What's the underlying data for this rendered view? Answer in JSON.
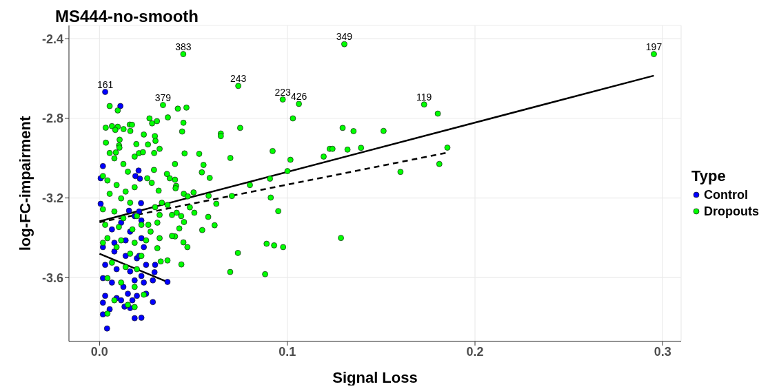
{
  "chart_data": {
    "type": "scatter",
    "title": "MS444-no-smooth",
    "xlabel": "Signal Loss",
    "ylabel": "log-FC-impairment",
    "legend_title": "Type",
    "legend": "right",
    "grid": true,
    "marker": "circle",
    "xlim": [
      -0.0163,
      0.3098
    ],
    "ylim": [
      -3.921,
      -2.333
    ],
    "xticks": [
      {
        "value": 0,
        "label": "0.0"
      },
      0.1,
      0.2,
      0.3
    ],
    "yticks": [
      -3.6,
      -3.2,
      -2.8,
      -2.4
    ],
    "series": [
      {
        "name": "Control",
        "color": "#0000ff",
        "x": [
          0.003,
          0.0111,
          0.0018,
          0.0006,
          0.0208,
          0.0191,
          0.0215,
          0.0006,
          0.0221,
          0.0157,
          0.0018,
          0.0079,
          0.0139,
          0.0199,
          0.0248,
          0.003,
          0.0091,
          0.0163,
          0.0223,
          0.0018,
          0.0066,
          0.0127,
          0.0187,
          0.0236,
          0.003,
          0.0091,
          0.0151,
          0.0199,
          0.0018,
          0.0115,
          0.0175,
          0.0248,
          0.0284,
          0.0054,
          0.0133,
          0.0163,
          0.0018,
          0.0187,
          0.0223,
          0.004,
          0.0296,
          0.0293,
          0.0284,
          0.0362,
          0.0211,
          0.0223,
          0.0187,
          0.0163,
          0.0115,
          0.0066,
          0.0223,
          0.0139,
          0.0079,
          0.0236,
          0.0211
        ],
        "values": [
          -2.667,
          -2.738,
          -3.04,
          -3.101,
          -3.062,
          -3.09,
          -3.103,
          -3.229,
          -3.226,
          -3.264,
          -3.447,
          -3.469,
          -3.491,
          -3.503,
          -3.536,
          -3.536,
          -3.558,
          -3.569,
          -3.592,
          -3.603,
          -3.625,
          -3.647,
          -3.614,
          -3.625,
          -3.692,
          -3.703,
          -3.681,
          -3.692,
          -3.726,
          -3.714,
          -3.714,
          -3.681,
          -3.723,
          -3.759,
          -3.746,
          -3.753,
          -3.785,
          -3.804,
          -3.802,
          -3.856,
          -3.536,
          -3.573,
          -3.614,
          -3.622,
          -3.268,
          -3.313,
          -3.291,
          -3.369,
          -3.324,
          -3.358,
          -3.402,
          -3.413,
          -3.425,
          -3.447,
          -3.491
        ]
      },
      {
        "name": "Dropouts",
        "color": "#00ff00",
        "x": [
          0.0446,
          0.1304,
          0.2953,
          0.0739,
          0.0976,
          0.1062,
          0.1729,
          0.0338,
          0.1802,
          0.103,
          0.1295,
          0.1353,
          0.1513,
          0.1853,
          0.1393,
          0.1321,
          0.1226,
          0.1241,
          0.1194,
          0.1017,
          0.181,
          0.1603,
          0.1001,
          0.0922,
          0.0908,
          0.0912,
          0.0952,
          0.1286,
          0.089,
          0.093,
          0.0978,
          0.0882,
          0.0696,
          0.0737,
          0.0697,
          0.0749,
          0.0646,
          0.0646,
          0.0531,
          0.0554,
          0.0545,
          0.0587,
          0.0801,
          0.0705,
          0.0581,
          0.0622,
          0.0579,
          0.0613,
          0.0547,
          0.0463,
          0.0417,
          0.0447,
          0.044,
          0.0453,
          0.0402,
          0.0402,
          0.0408,
          0.0449,
          0.047,
          0.0501,
          0.0481,
          0.0505,
          0.045,
          0.0425,
          0.0435,
          0.0402,
          0.0447,
          0.0468,
          0.0436,
          0.0054,
          0.0097,
          0.0364,
          0.0266,
          0.0306,
          0.028,
          0.0033,
          0.0066,
          0.0097,
          0.0084,
          0.0128,
          0.0161,
          0.0173,
          0.0164,
          0.0236,
          0.0295,
          0.0298,
          0.0258,
          0.032,
          0.0034,
          0.0107,
          0.0104,
          0.0106,
          0.0196,
          0.0054,
          0.0087,
          0.021,
          0.0231,
          0.0291,
          0.0187,
          0.0079,
          0.0127,
          0.0151,
          0.0042,
          0.0091,
          0.0139,
          0.0187,
          0.0054,
          0.0115,
          0.0163,
          0.0018,
          0.0079,
          0.0127,
          0.0199,
          0.003,
          0.0103,
          0.0175,
          0.0223,
          0.026,
          0.0042,
          0.0115,
          0.0187,
          0.0248,
          0.0018,
          0.0091,
          0.0163,
          0.0223,
          0.0066,
          0.0139,
          0.0199,
          0.0042,
          0.0115,
          0.0187,
          0.0236,
          0.0079,
          0.0151,
          0.0042,
          0.0187,
          0.0296,
          0.0332,
          0.032,
          0.0308,
          0.0272,
          0.032,
          0.0308,
          0.0326,
          0.0362,
          0.0386,
          0.0386,
          0.0411,
          0.0362,
          0.0405,
          0.0374,
          0.0315,
          0.0359,
          0.029,
          0.0254,
          0.0278,
          0.0018
        ],
        "values": [
          -2.477,
          -2.427,
          -2.477,
          -2.637,
          -2.705,
          -2.727,
          -2.73,
          -2.733,
          -2.776,
          -2.8,
          -2.848,
          -2.864,
          -2.863,
          -2.947,
          -2.948,
          -2.957,
          -2.953,
          -2.953,
          -2.992,
          -3.008,
          -3.029,
          -3.069,
          -3.065,
          -2.964,
          -3.103,
          -3.198,
          -3.266,
          -3.401,
          -3.43,
          -3.438,
          -3.447,
          -3.583,
          -3.572,
          -3.476,
          -2.999,
          -2.848,
          -2.876,
          -2.889,
          -2.978,
          -3.034,
          -3.071,
          -3.099,
          -3.135,
          -3.19,
          -3.189,
          -3.229,
          -3.295,
          -3.337,
          -3.361,
          -2.746,
          -2.751,
          -2.822,
          -2.866,
          -2.976,
          -3.029,
          -3.108,
          -3.139,
          -3.179,
          -3.192,
          -3.172,
          -3.247,
          -3.274,
          -3.321,
          -3.353,
          -3.291,
          -3.393,
          -3.423,
          -3.447,
          -3.534,
          -2.738,
          -2.76,
          -2.795,
          -2.8,
          -2.814,
          -2.825,
          -2.847,
          -2.839,
          -2.842,
          -2.858,
          -2.854,
          -2.831,
          -2.832,
          -2.863,
          -2.881,
          -2.889,
          -2.913,
          -2.931,
          -2.953,
          -2.922,
          -2.907,
          -2.936,
          -2.947,
          -2.929,
          -2.974,
          -2.971,
          -2.975,
          -2.97,
          -2.974,
          -2.992,
          -3.001,
          -3.029,
          -3.068,
          -3.112,
          -3.135,
          -3.168,
          -3.146,
          -3.179,
          -3.202,
          -3.224,
          -3.257,
          -3.268,
          -3.302,
          -3.291,
          -3.335,
          -3.346,
          -3.358,
          -3.335,
          -3.335,
          -3.402,
          -3.413,
          -3.425,
          -3.413,
          -3.425,
          -3.447,
          -3.48,
          -3.491,
          -3.525,
          -3.547,
          -3.558,
          -3.603,
          -3.625,
          -3.647,
          -3.686,
          -3.714,
          -3.737,
          -3.781,
          -3.748,
          -3.246,
          -3.224,
          -3.285,
          -3.324,
          -3.369,
          -3.402,
          -3.452,
          -3.519,
          -3.514,
          -3.391,
          -3.285,
          -3.274,
          -3.235,
          -3.151,
          -3.101,
          -3.163,
          -3.079,
          -3.059,
          -3.101,
          -3.124,
          -3.09
        ]
      },
      {
        "type": "line",
        "marker": "none",
        "color": "#000000",
        "line_style": "solid",
        "x": [
          0,
          0.2953
        ],
        "values": [
          -3.317,
          -2.585
        ]
      },
      {
        "type": "line",
        "marker": "none",
        "color": "#000000",
        "line_style": "dashed",
        "x": [
          0,
          0.1848
        ],
        "values": [
          -3.322,
          -2.973
        ]
      },
      {
        "type": "line",
        "marker": "none",
        "color": "#000000",
        "line_style": "solid",
        "x": [
          0,
          0.0362
        ],
        "values": [
          -3.48,
          -3.622
        ]
      }
    ],
    "annotations": [
      {
        "text": "161",
        "x": 0.003,
        "y": -2.667
      },
      {
        "text": "379",
        "x": 0.0338,
        "y": -2.733
      },
      {
        "text": "383",
        "x": 0.0446,
        "y": -2.477
      },
      {
        "text": "243",
        "x": 0.0739,
        "y": -2.637
      },
      {
        "text": "223",
        "x": 0.0976,
        "y": -2.705
      },
      {
        "text": "426",
        "x": 0.1062,
        "y": -2.727
      },
      {
        "text": "349",
        "x": 0.1304,
        "y": -2.427
      },
      {
        "text": "119",
        "x": 0.1729,
        "y": -2.73
      },
      {
        "text": "197",
        "x": 0.2953,
        "y": -2.477
      }
    ]
  }
}
